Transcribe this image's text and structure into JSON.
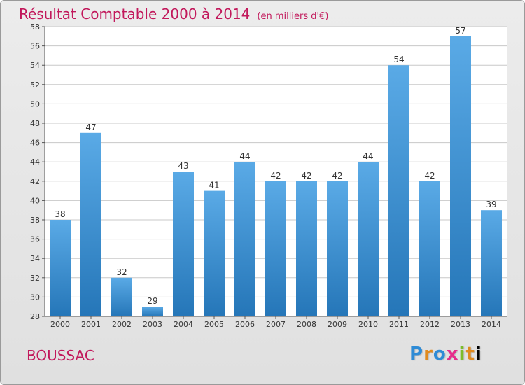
{
  "header": {
    "title": "Résultat Comptable 2000 à 2014",
    "unit": "(en milliers d'€)"
  },
  "footer": {
    "commune": "BOUSSAC",
    "logo_letters": [
      "P",
      "r",
      "o",
      "x",
      "i",
      "t",
      "i"
    ]
  },
  "colors": {
    "title": "#c2185b",
    "bar_top": "#5aaae6",
    "bar_bottom": "#2576b8",
    "grid": "#c8c8c8"
  },
  "chart_data": {
    "type": "bar",
    "title": "Résultat Comptable 2000 à 2014",
    "xlabel": "",
    "ylabel": "",
    "categories": [
      "2000",
      "2001",
      "2002",
      "2003",
      "2004",
      "2005",
      "2006",
      "2007",
      "2008",
      "2009",
      "2010",
      "2011",
      "2012",
      "2013",
      "2014"
    ],
    "values": [
      38,
      47,
      32,
      29,
      43,
      41,
      44,
      42,
      42,
      42,
      44,
      54,
      42,
      57,
      39
    ],
    "ylim": [
      28,
      58
    ],
    "yticks": [
      28,
      30,
      32,
      34,
      36,
      38,
      40,
      42,
      44,
      46,
      48,
      50,
      52,
      54,
      56,
      58
    ],
    "grid": true,
    "legend": "none"
  }
}
